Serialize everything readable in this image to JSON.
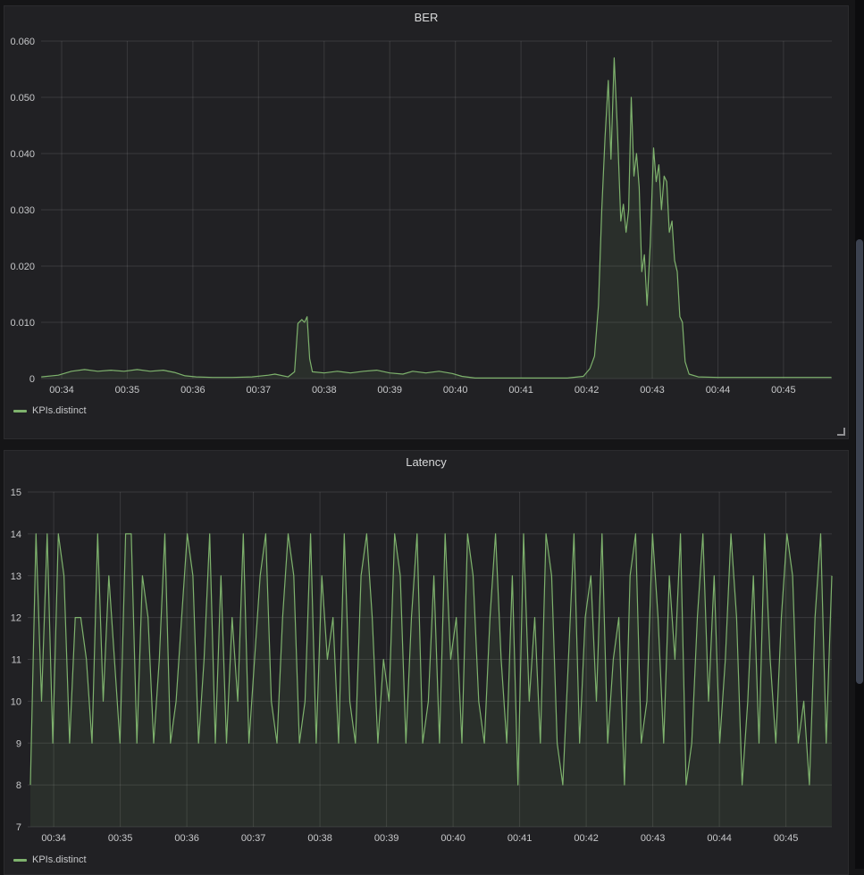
{
  "colors": {
    "page_bg": "#151517",
    "panel_bg": "#212124",
    "grid": "rgba(255,255,255,0.11)",
    "tick_text": "#c7c8ca",
    "title_text": "#d8d9da",
    "series_green": "#7eb26d",
    "series_fill": "rgba(126,178,109,0.10)"
  },
  "chart_data": [
    {
      "type": "line",
      "title": "BER",
      "xlabel": "",
      "ylabel": "",
      "grid": true,
      "legend_position": "bottom-left",
      "xlim": [
        33.687,
        45.736
      ],
      "ylim": [
        0,
        0.06
      ],
      "x_tick_labels": [
        "00:34",
        "00:35",
        "00:36",
        "00:37",
        "00:38",
        "00:39",
        "00:40",
        "00:41",
        "00:42",
        "00:43",
        "00:44",
        "00:45"
      ],
      "x_tick_minutes": [
        34,
        35,
        36,
        37,
        38,
        39,
        40,
        41,
        42,
        43,
        44,
        45
      ],
      "y_ticks": [
        0,
        0.01,
        0.02,
        0.03,
        0.04,
        0.05,
        0.06
      ],
      "y_tick_labels": [
        "0",
        "0.010",
        "0.020",
        "0.030",
        "0.040",
        "0.050",
        "0.060"
      ],
      "series": [
        {
          "name": "KPIs.distinct",
          "color": "#7eb26d",
          "points": [
            [
              33.69,
              0.0003
            ],
            [
              33.95,
              0.0006
            ],
            [
              34.15,
              0.0013
            ],
            [
              34.35,
              0.0016
            ],
            [
              34.55,
              0.0013
            ],
            [
              34.75,
              0.0015
            ],
            [
              34.95,
              0.0013
            ],
            [
              35.15,
              0.0016
            ],
            [
              35.35,
              0.0013
            ],
            [
              35.55,
              0.0015
            ],
            [
              35.72,
              0.0011
            ],
            [
              35.88,
              0.0005
            ],
            [
              36.05,
              0.0003
            ],
            [
              36.3,
              0.0002
            ],
            [
              36.6,
              0.0002
            ],
            [
              36.9,
              0.0003
            ],
            [
              37.15,
              0.0006
            ],
            [
              37.25,
              0.0008
            ],
            [
              37.45,
              0.0003
            ],
            [
              37.55,
              0.0012
            ],
            [
              37.6,
              0.0098
            ],
            [
              37.66,
              0.0105
            ],
            [
              37.7,
              0.01
            ],
            [
              37.74,
              0.011
            ],
            [
              37.78,
              0.0035
            ],
            [
              37.82,
              0.0012
            ],
            [
              38.0,
              0.001
            ],
            [
              38.2,
              0.0013
            ],
            [
              38.4,
              0.001
            ],
            [
              38.6,
              0.0013
            ],
            [
              38.8,
              0.0015
            ],
            [
              39.0,
              0.001
            ],
            [
              39.2,
              0.0008
            ],
            [
              39.35,
              0.0013
            ],
            [
              39.55,
              0.001
            ],
            [
              39.75,
              0.0013
            ],
            [
              39.95,
              0.0009
            ],
            [
              40.1,
              0.0004
            ],
            [
              40.3,
              0.0001
            ],
            [
              40.7,
              0.0001
            ],
            [
              41.2,
              0.0001
            ],
            [
              41.7,
              0.0001
            ],
            [
              41.95,
              0.0004
            ],
            [
              42.05,
              0.0018
            ],
            [
              42.12,
              0.004
            ],
            [
              42.18,
              0.013
            ],
            [
              42.23,
              0.03
            ],
            [
              42.28,
              0.043
            ],
            [
              42.33,
              0.053
            ],
            [
              42.37,
              0.039
            ],
            [
              42.42,
              0.057
            ],
            [
              42.47,
              0.044
            ],
            [
              42.52,
              0.028
            ],
            [
              42.56,
              0.031
            ],
            [
              42.6,
              0.026
            ],
            [
              42.64,
              0.03
            ],
            [
              42.68,
              0.05
            ],
            [
              42.72,
              0.036
            ],
            [
              42.76,
              0.04
            ],
            [
              42.8,
              0.034
            ],
            [
              42.84,
              0.019
            ],
            [
              42.88,
              0.022
            ],
            [
              42.92,
              0.013
            ],
            [
              42.97,
              0.024
            ],
            [
              43.02,
              0.041
            ],
            [
              43.06,
              0.035
            ],
            [
              43.1,
              0.038
            ],
            [
              43.14,
              0.03
            ],
            [
              43.18,
              0.036
            ],
            [
              43.22,
              0.035
            ],
            [
              43.26,
              0.026
            ],
            [
              43.3,
              0.028
            ],
            [
              43.34,
              0.021
            ],
            [
              43.38,
              0.019
            ],
            [
              43.42,
              0.011
            ],
            [
              43.46,
              0.01
            ],
            [
              43.5,
              0.003
            ],
            [
              43.56,
              0.0008
            ],
            [
              43.7,
              0.0003
            ],
            [
              44.0,
              0.0002
            ],
            [
              44.4,
              0.0002
            ],
            [
              44.9,
              0.0002
            ],
            [
              45.3,
              0.0002
            ],
            [
              45.73,
              0.0002
            ]
          ]
        }
      ]
    },
    {
      "type": "line",
      "title": "Latency",
      "xlabel": "",
      "ylabel": "",
      "grid": true,
      "legend_position": "bottom-left",
      "xlim": [
        33.61,
        45.69
      ],
      "ylim": [
        7,
        15
      ],
      "x_tick_labels": [
        "00:34",
        "00:35",
        "00:36",
        "00:37",
        "00:38",
        "00:39",
        "00:40",
        "00:41",
        "00:42",
        "00:43",
        "00:44",
        "00:45"
      ],
      "x_tick_minutes": [
        34,
        35,
        36,
        37,
        38,
        39,
        40,
        41,
        42,
        43,
        44,
        45
      ],
      "y_ticks": [
        7,
        8,
        9,
        10,
        11,
        12,
        13,
        14,
        15
      ],
      "y_tick_labels": [
        "7",
        "8",
        "9",
        "10",
        "11",
        "12",
        "13",
        "14",
        "15"
      ],
      "series": [
        {
          "name": "KPIs.distinct",
          "color": "#7eb26d",
          "x_start": 33.65,
          "x_end": 45.69,
          "values": [
            8,
            14,
            10,
            14,
            9,
            14,
            13,
            9,
            12,
            12,
            11,
            9,
            14,
            10,
            13,
            11,
            9,
            14,
            14,
            9,
            13,
            12,
            9,
            11,
            14,
            9,
            10,
            12,
            14,
            13,
            9,
            11,
            14,
            9,
            13,
            9,
            12,
            10,
            14,
            9,
            11,
            13,
            14,
            10,
            9,
            12,
            14,
            13,
            9,
            10,
            14,
            9,
            13,
            11,
            12,
            9,
            14,
            10,
            9,
            13,
            14,
            12,
            9,
            11,
            10,
            14,
            13,
            9,
            12,
            14,
            9,
            10,
            13,
            9,
            14,
            11,
            12,
            9,
            14,
            13,
            10,
            9,
            12,
            14,
            11,
            9,
            13,
            8,
            14,
            10,
            12,
            9,
            14,
            13,
            9,
            8,
            11,
            14,
            9,
            12,
            13,
            10,
            14,
            9,
            11,
            12,
            8,
            13,
            14,
            9,
            10,
            14,
            12,
            9,
            13,
            11,
            14,
            8,
            9,
            12,
            14,
            10,
            13,
            9,
            11,
            14,
            12,
            8,
            10,
            13,
            9,
            14,
            11,
            9,
            12,
            14,
            13,
            9,
            10,
            8,
            12,
            14,
            9,
            13
          ]
        }
      ]
    }
  ]
}
